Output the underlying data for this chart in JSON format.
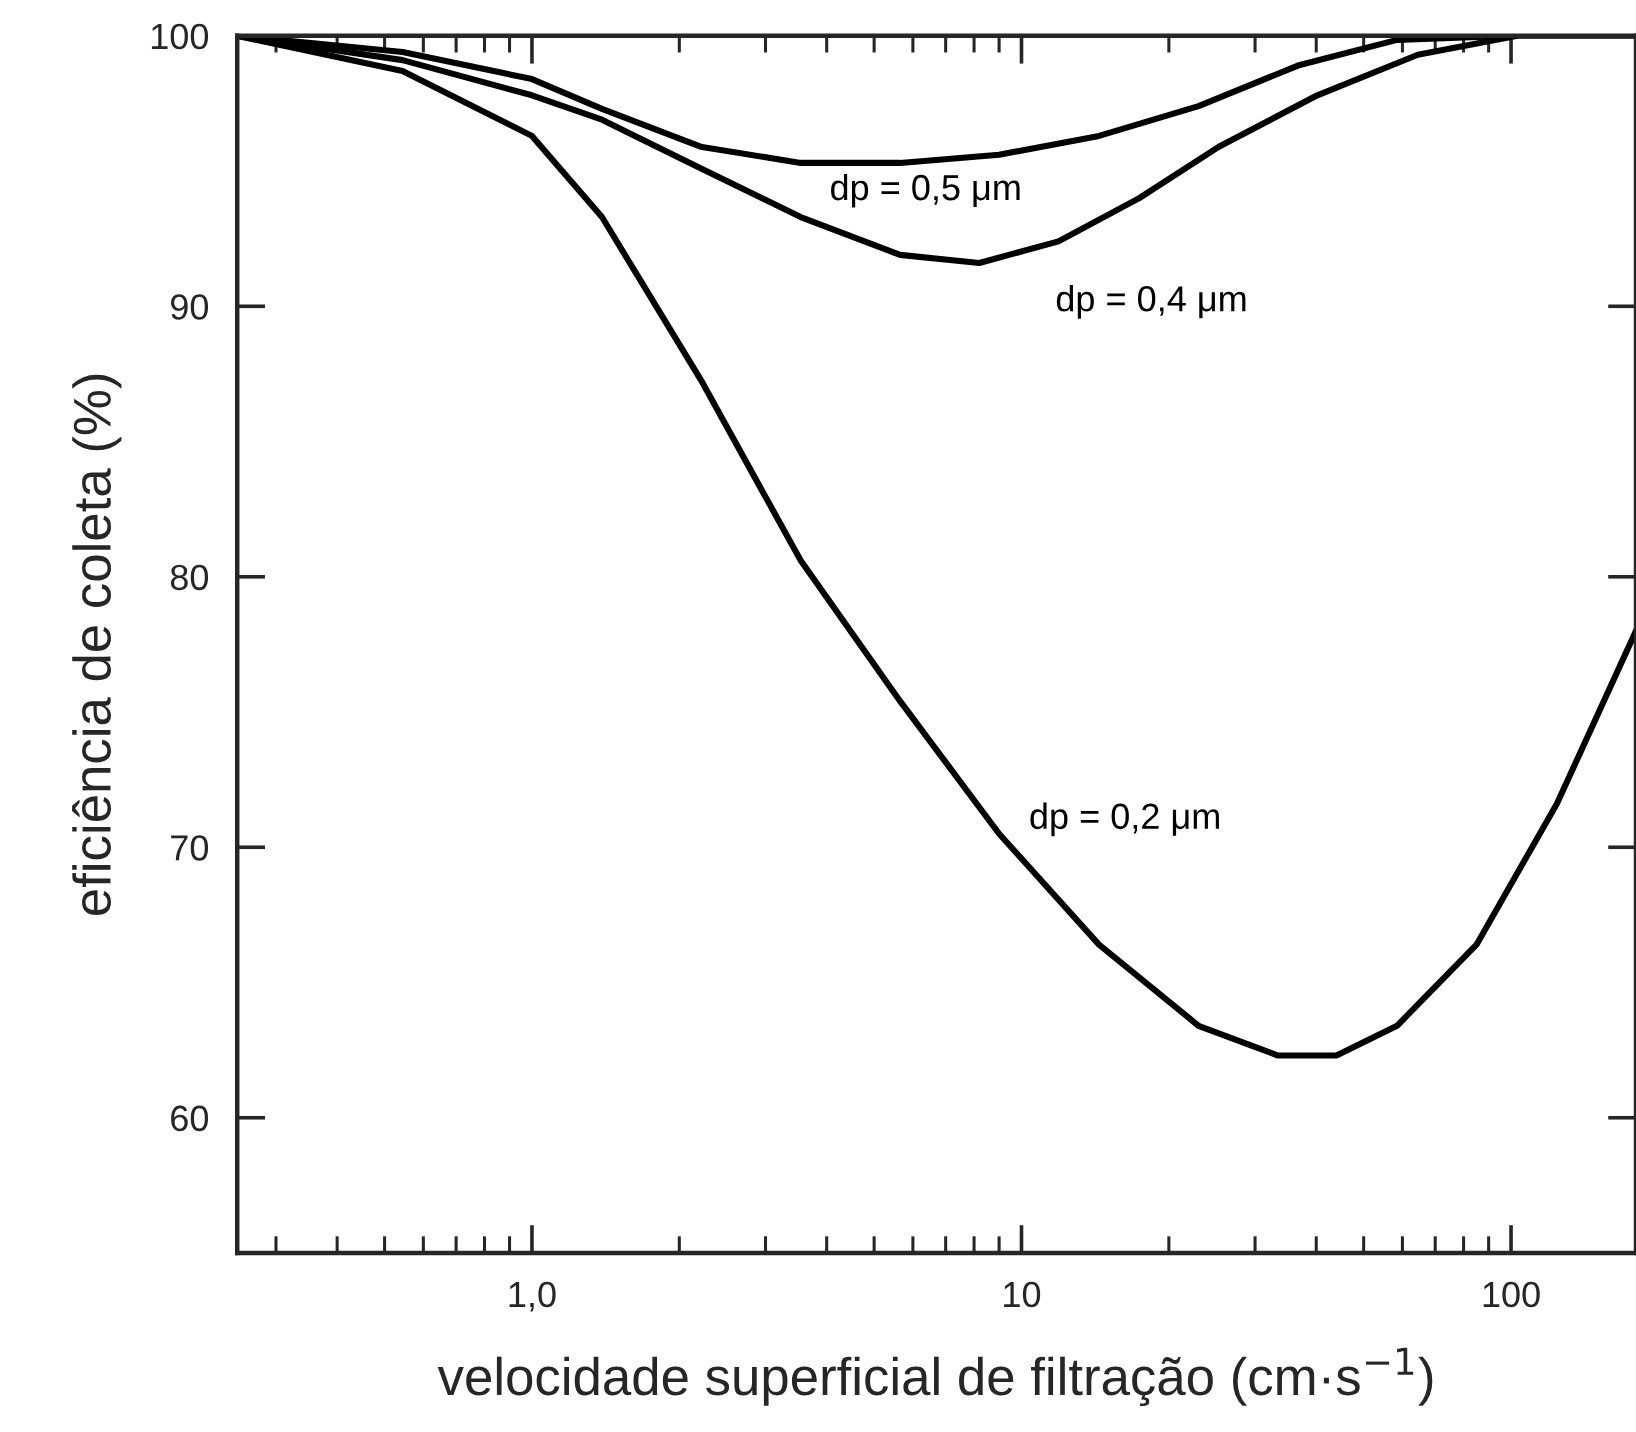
{
  "chart_data": {
    "type": "line",
    "xlabel": "velocidade superficial de filtração (cm·s$^{−1}$)",
    "ylabel": "eficiência de coleta (%)",
    "log": "x",
    "xlim": [
      0.25,
      180
    ],
    "ylim": [
      55,
      100
    ],
    "xticks": [
      {
        "value": 1,
        "label": "1,0"
      },
      10,
      100
    ],
    "yticks": [
      60,
      70,
      80,
      90,
      100
    ],
    "grid": false,
    "legend": false,
    "marker": "none",
    "line_style": "solid",
    "series": [
      {
        "name": "dp = 0,2 μm",
        "color": "#000000",
        "x": [
          0.25,
          0.544,
          1.0,
          1.39,
          2.21,
          3.54,
          5.65,
          9.0,
          14.4,
          23,
          33.4,
          44,
          58.5,
          85,
          124,
          180
        ],
        "values": [
          100,
          98.7,
          96.3,
          93.3,
          87.3,
          80.6,
          75.4,
          70.5,
          66.4,
          63.4,
          62.3,
          62.3,
          63.4,
          66.4,
          71.6,
          78.0
        ]
      },
      {
        "name": "dp = 0,4 μm",
        "color": "#000000",
        "x": [
          0.25,
          0.544,
          1.0,
          1.39,
          2.21,
          3.54,
          5.65,
          8.2,
          11.9,
          17.4,
          25.3,
          40.2,
          64.5,
          103,
          180
        ],
        "values": [
          100,
          99.1,
          97.8,
          96.9,
          95.1,
          93.3,
          91.9,
          91.6,
          92.4,
          94.0,
          95.9,
          97.8,
          99.3,
          100,
          100
        ]
      },
      {
        "name": "dp = 0,5 μm",
        "color": "#000000",
        "x": [
          0.25,
          0.544,
          1.0,
          1.39,
          2.21,
          3.54,
          5.65,
          9.0,
          14.4,
          23,
          36.7,
          58.5,
          100
        ],
        "values": [
          100,
          99.4,
          98.4,
          97.3,
          95.9,
          95.3,
          95.3,
          95.6,
          96.3,
          97.4,
          98.9,
          99.85,
          100
        ]
      }
    ]
  }
}
